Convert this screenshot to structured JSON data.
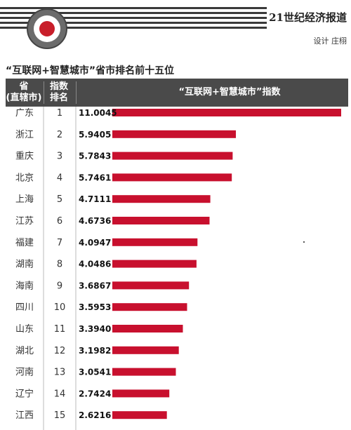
{
  "header": {
    "brand": "21世纪经济报道",
    "credit": "设计 庄栩"
  },
  "chart_data": {
    "type": "bar",
    "orientation": "horizontal",
    "title": "“互联网+智慧城市”省市排名前十五位",
    "column_headers": {
      "province_line1": "省",
      "province_line2": "(直辖市)",
      "rank_line1": "指数",
      "rank_line2": "排名",
      "index": "“互联网+智慧城市”指数"
    },
    "categories": [
      "广东",
      "浙江",
      "重庆",
      "北京",
      "上海",
      "江苏",
      "福建",
      "湖南",
      "海南",
      "四川",
      "山东",
      "湖北",
      "河南",
      "辽宁",
      "江西"
    ],
    "ranks": [
      1,
      2,
      3,
      4,
      5,
      6,
      7,
      8,
      9,
      10,
      11,
      12,
      13,
      14,
      15
    ],
    "values": [
      11.0045,
      5.9405,
      5.7843,
      5.7461,
      4.7111,
      4.6736,
      4.0947,
      4.0486,
      3.6867,
      3.5953,
      3.394,
      3.1982,
      3.0541,
      2.7424,
      2.6216
    ],
    "value_labels": [
      "11.0045",
      "5.9405",
      "5.7843",
      "5.7461",
      "4.7111",
      "4.6736",
      "4.0947",
      "4.0486",
      "3.6867",
      "3.5953",
      "3.3940",
      "3.1982",
      "3.0541",
      "2.7424",
      "2.6216"
    ],
    "xlim": [
      0,
      11.0045
    ],
    "bar_color": "#c8102e",
    "grid": false
  }
}
